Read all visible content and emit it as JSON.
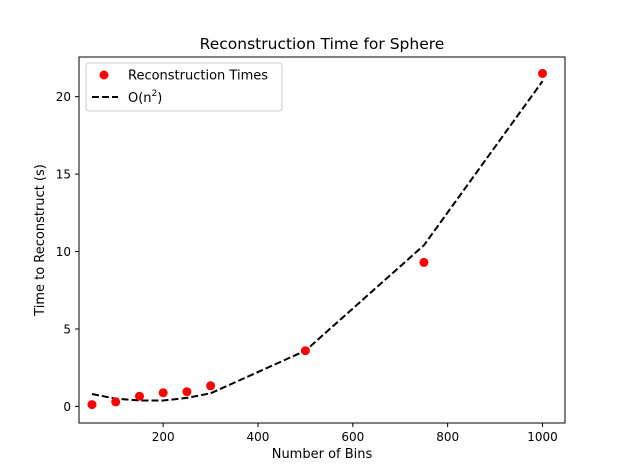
{
  "chart_data": {
    "type": "scatter",
    "title": "Reconstruction Time for Sphere",
    "xlabel": "Number of Bins",
    "ylabel": "Time to Reconstruct (s)",
    "xlim": [
      22.5,
      1047.5
    ],
    "ylim": [
      -1.07,
      22.56
    ],
    "xticks": [
      200,
      400,
      600,
      800,
      1000
    ],
    "yticks": [
      0,
      5,
      10,
      15,
      20
    ],
    "grid": false,
    "legend_position": "top-left",
    "series": [
      {
        "name": "Reconstruction Times",
        "kind": "scatter",
        "color": "#ff0000",
        "x": [
          50,
          100,
          150,
          200,
          250,
          300,
          500,
          750,
          1000
        ],
        "y": [
          0.12,
          0.29,
          0.66,
          0.88,
          0.95,
          1.33,
          3.6,
          9.3,
          21.5
        ]
      },
      {
        "name": "O(n²)",
        "legend_base": "O(n",
        "legend_sup": "2",
        "legend_end": ")",
        "kind": "line",
        "style": "dashed",
        "color": "#000000",
        "x": [
          50,
          100,
          150,
          200,
          250,
          300,
          500,
          750,
          1000
        ],
        "y": [
          0.8,
          0.5,
          0.38,
          0.38,
          0.55,
          0.85,
          3.6,
          10.4,
          21.0
        ]
      }
    ]
  }
}
